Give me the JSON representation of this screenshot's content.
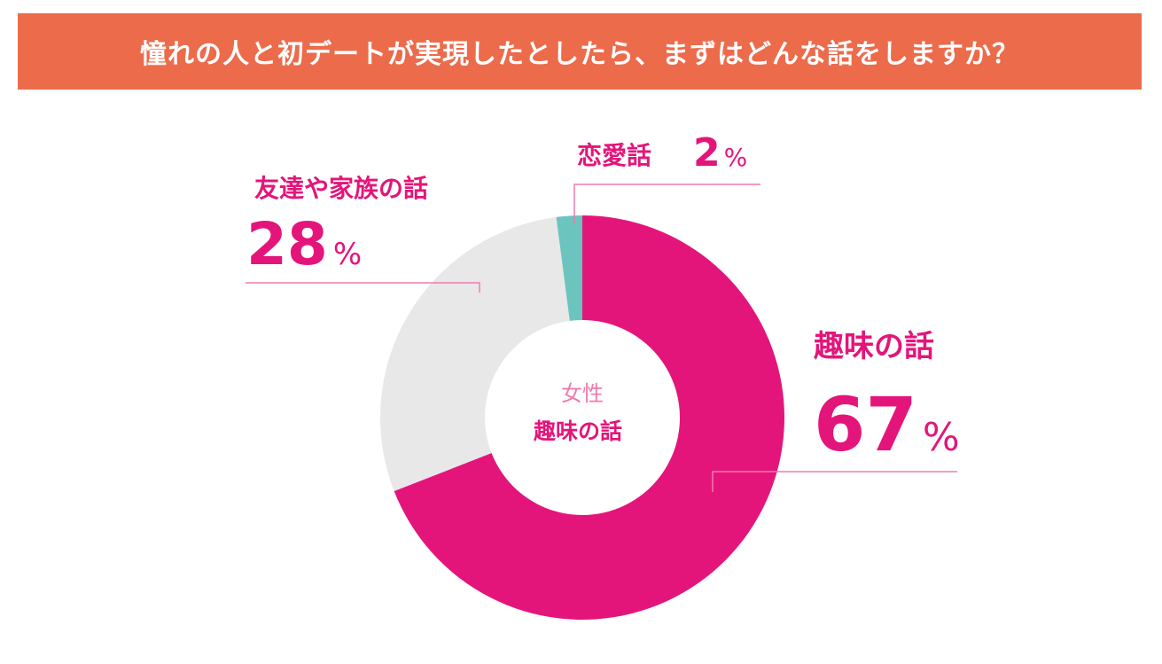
{
  "title": "憧れの人と初デートが実現したとしたら、まずはどんな話をしますか？",
  "center": {
    "line1": "女性",
    "line2": "趣味の話"
  },
  "colors": {
    "banner": "#ec6b4b",
    "accent": "#e4157a",
    "leader": "#f07aae",
    "center_sub": "#f07aae"
  },
  "chart_data": {
    "type": "pie",
    "donut": true,
    "unit": "%",
    "slices": [
      {
        "label": "趣味の話",
        "value": 67,
        "color": "#e4157a"
      },
      {
        "label": "友達や家族の話",
        "value": 28,
        "color": "#e8e8e8"
      },
      {
        "label": "恋愛話",
        "value": 2,
        "color": "#6cc4bf"
      }
    ]
  }
}
